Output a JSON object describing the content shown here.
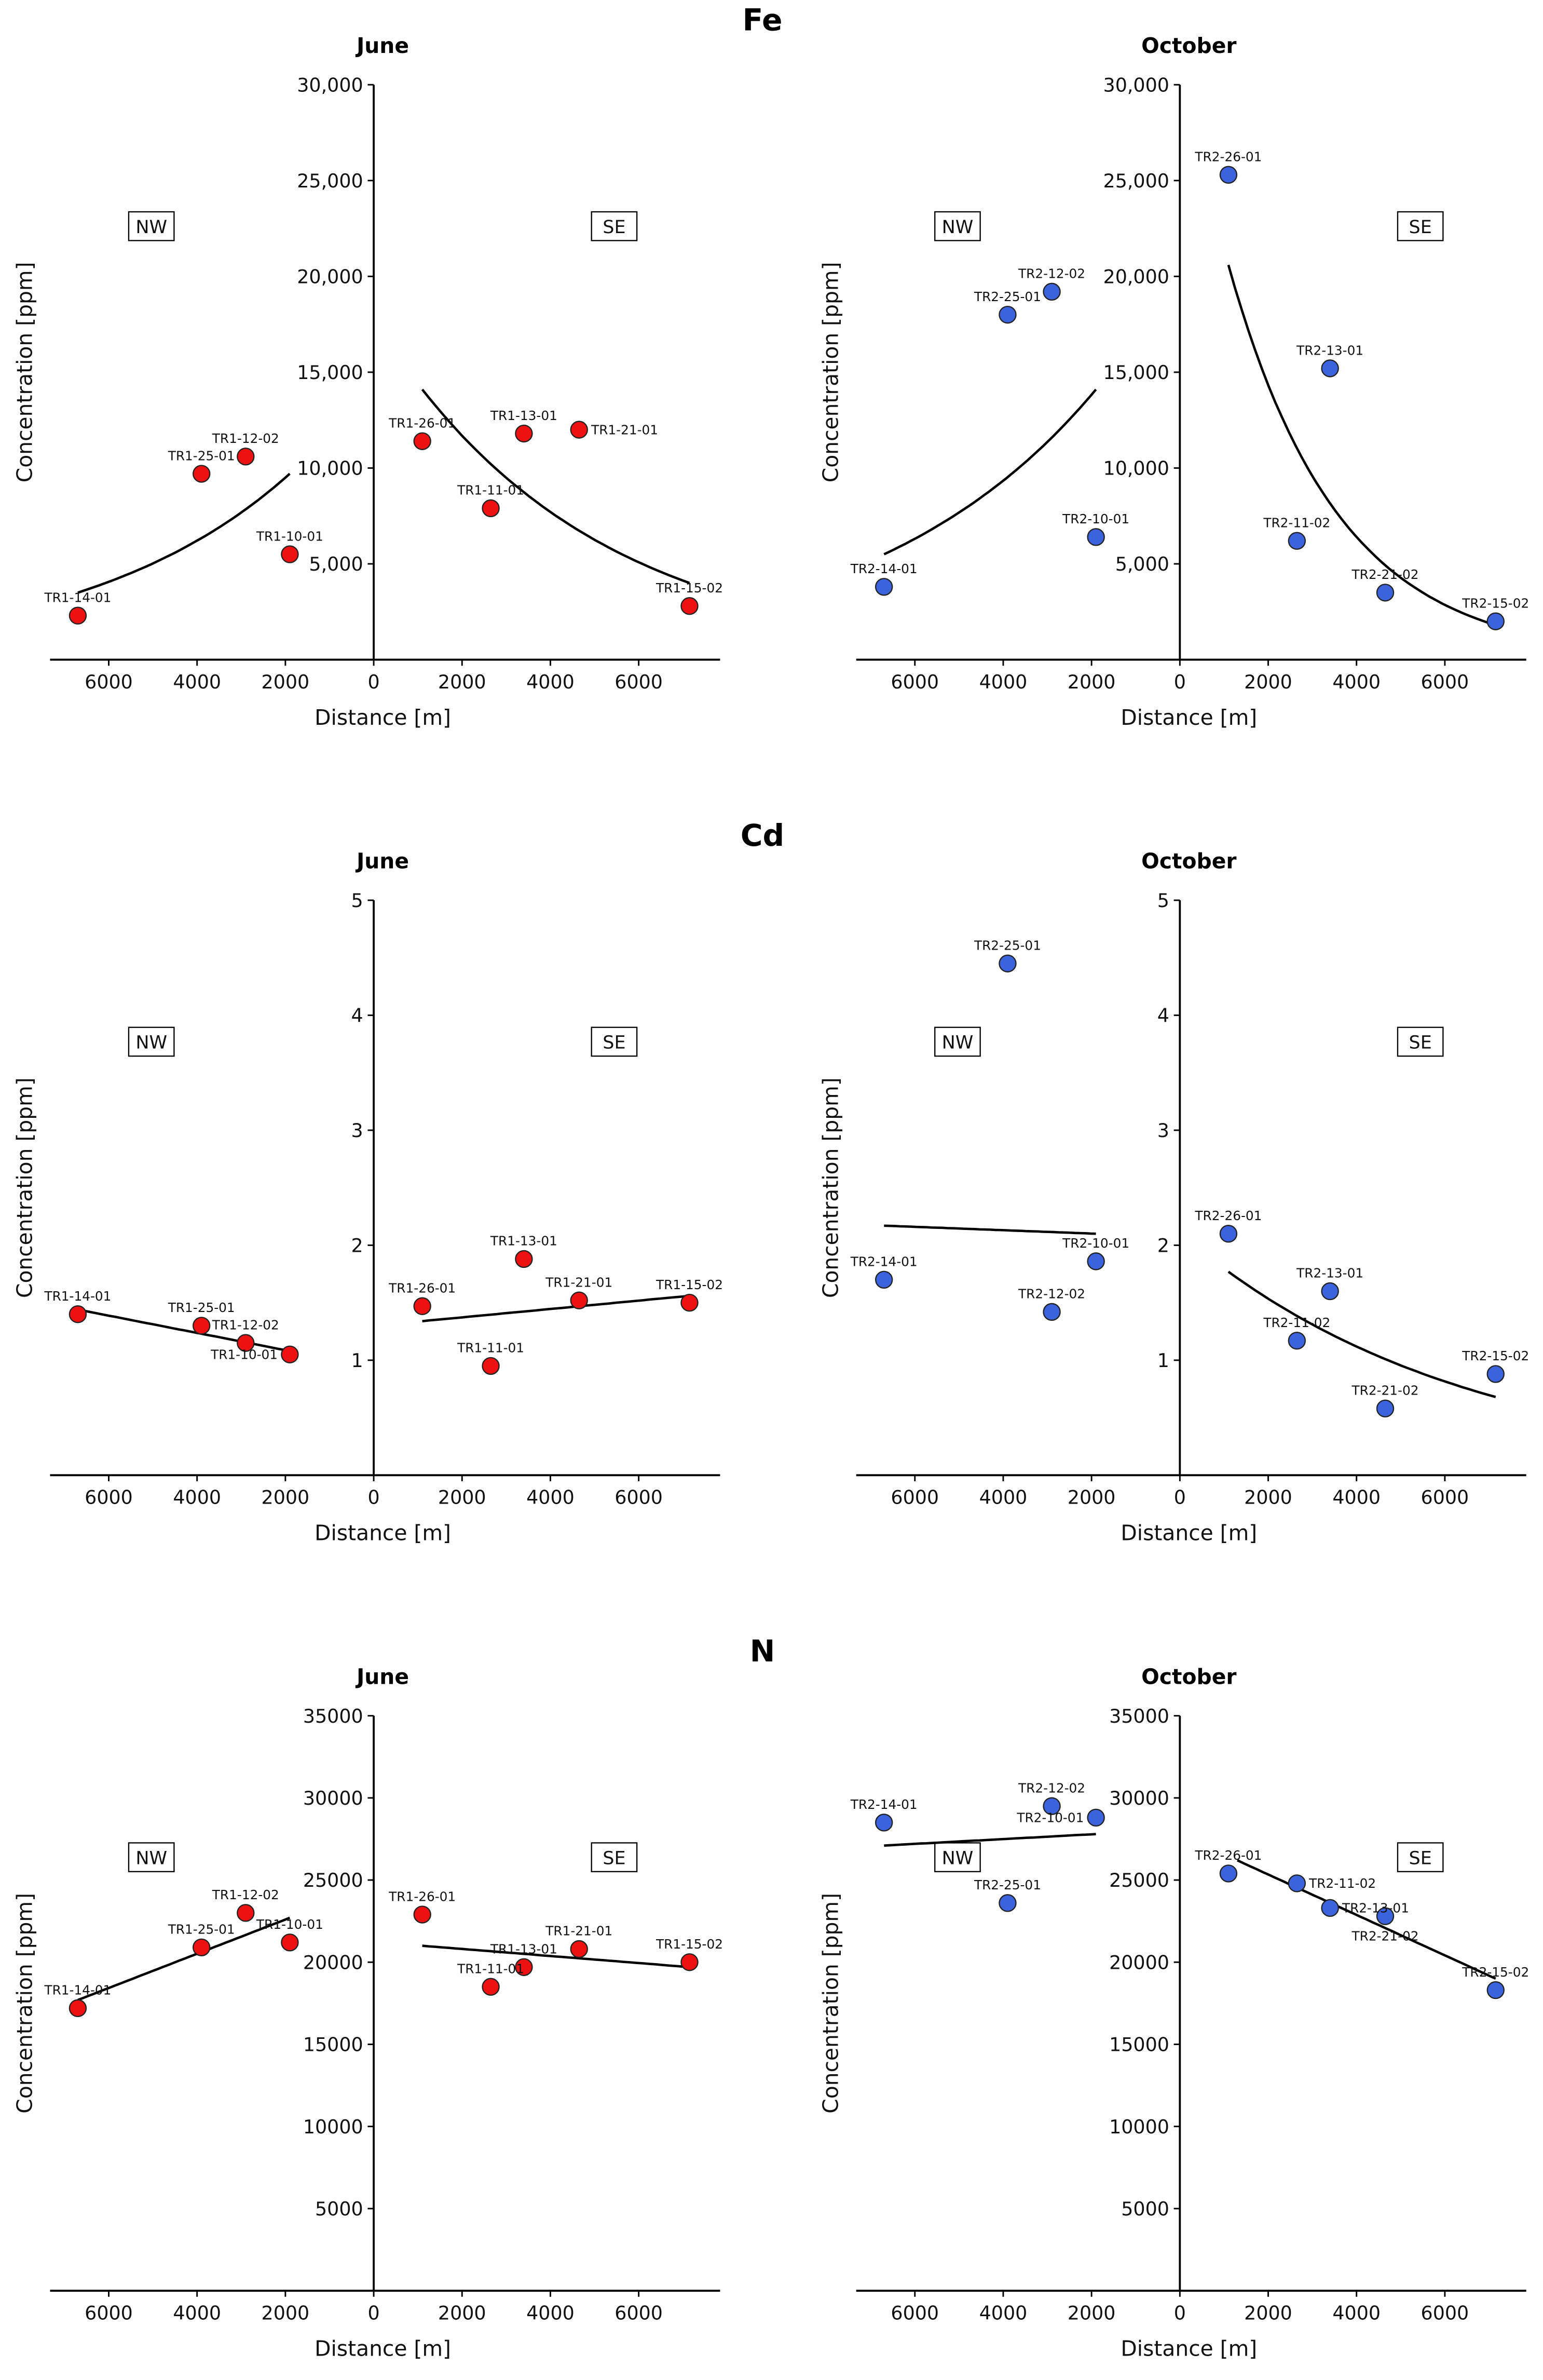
{
  "chart_data": [
    {
      "type": "scatter",
      "element": "Fe",
      "title": "June",
      "xlabel": "Distance [m]",
      "ylabel": "Concentration [ppm]",
      "ylim": [
        0,
        30000
      ],
      "yticks": [
        5000,
        10000,
        15000,
        20000,
        25000,
        30000
      ],
      "ytick_labels": [
        "5,000",
        "10,000",
        "15,000",
        "20,000",
        "25,000",
        "30,000"
      ],
      "xticks": [
        -6000,
        -4000,
        -2000,
        0,
        2000,
        4000,
        6000
      ],
      "xtick_labels": [
        "6000",
        "4000",
        "2000",
        "0",
        "2000",
        "4000",
        "6000"
      ],
      "regions": [
        "NW",
        "SE"
      ],
      "color": "#ee1111",
      "points": [
        {
          "label": "TR1-14-01",
          "x": -6700,
          "y": 2300
        },
        {
          "label": "TR1-25-01",
          "x": -3900,
          "y": 9700
        },
        {
          "label": "TR1-12-02",
          "x": -2900,
          "y": 10600
        },
        {
          "label": "TR1-10-01",
          "x": -1900,
          "y": 5500
        },
        {
          "label": "TR1-26-01",
          "x": 1100,
          "y": 11400
        },
        {
          "label": "TR1-11-01",
          "x": 2650,
          "y": 7900
        },
        {
          "label": "TR1-13-01",
          "x": 3400,
          "y": 11800
        },
        {
          "label": "TR1-21-01",
          "x": 4650,
          "y": 12000
        },
        {
          "label": "TR1-15-02",
          "x": 7150,
          "y": 2800
        }
      ],
      "trends": [
        {
          "fit": "exp",
          "x": [
            -6700,
            -1900
          ],
          "y": [
            3500,
            9700
          ]
        },
        {
          "fit": "exp",
          "x": [
            1100,
            7150
          ],
          "y": [
            14100,
            4000
          ]
        }
      ]
    },
    {
      "type": "scatter",
      "element": "",
      "title": "October",
      "xlabel": "Distance [m]",
      "ylabel": "Concentration [ppm]",
      "ylim": [
        0,
        30000
      ],
      "yticks": [
        5000,
        10000,
        15000,
        20000,
        25000,
        30000
      ],
      "ytick_labels": [
        "5,000",
        "10,000",
        "15,000",
        "20,000",
        "25,000",
        "30,000"
      ],
      "xticks": [
        -6000,
        -4000,
        -2000,
        0,
        2000,
        4000,
        6000
      ],
      "xtick_labels": [
        "6000",
        "4000",
        "2000",
        "0",
        "2000",
        "4000",
        "6000"
      ],
      "regions": [
        "NW",
        "SE"
      ],
      "color": "#3b63dd",
      "points": [
        {
          "label": "TR2-14-01",
          "x": -6700,
          "y": 3800
        },
        {
          "label": "TR2-25-01",
          "x": -3900,
          "y": 18000
        },
        {
          "label": "TR2-12-02",
          "x": -2900,
          "y": 19200
        },
        {
          "label": "TR2-10-01",
          "x": -1900,
          "y": 6400
        },
        {
          "label": "TR2-26-01",
          "x": 1100,
          "y": 25300
        },
        {
          "label": "TR2-11-02",
          "x": 2650,
          "y": 6200
        },
        {
          "label": "TR2-13-01",
          "x": 3400,
          "y": 15200
        },
        {
          "label": "TR2-21-02",
          "x": 4650,
          "y": 3500
        },
        {
          "label": "TR2-15-02",
          "x": 7150,
          "y": 2000
        }
      ],
      "trends": [
        {
          "fit": "exp",
          "x": [
            -6700,
            -1900
          ],
          "y": [
            5500,
            14100
          ]
        },
        {
          "fit": "exp",
          "x": [
            1100,
            7150
          ],
          "y": [
            20600,
            1800
          ]
        }
      ]
    },
    {
      "type": "scatter",
      "element": "Cd",
      "title": "June",
      "xlabel": "Distance [m]",
      "ylabel": "Concentration [ppm]",
      "ylim": [
        0,
        5
      ],
      "yticks": [
        1,
        2,
        3,
        4,
        5
      ],
      "ytick_labels": [
        "1",
        "2",
        "3",
        "4",
        "5"
      ],
      "xticks": [
        -6000,
        -4000,
        -2000,
        0,
        2000,
        4000,
        6000
      ],
      "xtick_labels": [
        "6000",
        "4000",
        "2000",
        "0",
        "2000",
        "4000",
        "6000"
      ],
      "regions": [
        "NW",
        "SE"
      ],
      "color": "#ee1111",
      "points": [
        {
          "label": "TR1-14-01",
          "x": -6700,
          "y": 1.4
        },
        {
          "label": "TR1-25-01",
          "x": -3900,
          "y": 1.3
        },
        {
          "label": "TR1-12-02",
          "x": -2900,
          "y": 1.15
        },
        {
          "label": "TR1-10-01",
          "x": -1900,
          "y": 1.05
        },
        {
          "label": "TR1-26-01",
          "x": 1100,
          "y": 1.47
        },
        {
          "label": "TR1-11-01",
          "x": 2650,
          "y": 0.95
        },
        {
          "label": "TR1-13-01",
          "x": 3400,
          "y": 1.88
        },
        {
          "label": "TR1-21-01",
          "x": 4650,
          "y": 1.52
        },
        {
          "label": "TR1-15-02",
          "x": 7150,
          "y": 1.5
        }
      ],
      "trends": [
        {
          "fit": "linear",
          "x": [
            -6700,
            -1900
          ],
          "y": [
            1.44,
            1.08
          ]
        },
        {
          "fit": "linear",
          "x": [
            1100,
            7150
          ],
          "y": [
            1.34,
            1.56
          ]
        }
      ]
    },
    {
      "type": "scatter",
      "element": "",
      "title": "October",
      "xlabel": "Distance [m]",
      "ylabel": "Concentration [ppm]",
      "ylim": [
        0,
        5
      ],
      "yticks": [
        1,
        2,
        3,
        4,
        5
      ],
      "ytick_labels": [
        "1",
        "2",
        "3",
        "4",
        "5"
      ],
      "xticks": [
        -6000,
        -4000,
        -2000,
        0,
        2000,
        4000,
        6000
      ],
      "xtick_labels": [
        "6000",
        "4000",
        "2000",
        "0",
        "2000",
        "4000",
        "6000"
      ],
      "regions": [
        "NW",
        "SE"
      ],
      "color": "#3b63dd",
      "points": [
        {
          "label": "TR2-14-01",
          "x": -6700,
          "y": 1.7
        },
        {
          "label": "TR2-25-01",
          "x": -3900,
          "y": 4.45
        },
        {
          "label": "TR2-12-02",
          "x": -2900,
          "y": 1.42
        },
        {
          "label": "TR2-10-01",
          "x": -1900,
          "y": 1.86
        },
        {
          "label": "TR2-26-01",
          "x": 1100,
          "y": 2.1
        },
        {
          "label": "TR2-11-02",
          "x": 2650,
          "y": 1.17
        },
        {
          "label": "TR2-13-01",
          "x": 3400,
          "y": 1.6
        },
        {
          "label": "TR2-21-02",
          "x": 4650,
          "y": 0.58
        },
        {
          "label": "TR2-15-02",
          "x": 7150,
          "y": 0.88
        }
      ],
      "trends": [
        {
          "fit": "linear",
          "x": [
            -6700,
            -1900
          ],
          "y": [
            2.17,
            2.1
          ]
        },
        {
          "fit": "exp",
          "x": [
            1100,
            7150
          ],
          "y": [
            1.77,
            0.68
          ]
        }
      ]
    },
    {
      "type": "scatter",
      "element": "N",
      "title": "June",
      "xlabel": "Distance [m]",
      "ylabel": "Concentration [ppm]",
      "ylim": [
        0,
        35000
      ],
      "yticks": [
        5000,
        10000,
        15000,
        20000,
        25000,
        30000,
        35000
      ],
      "ytick_labels": [
        "5000",
        "10000",
        "15000",
        "20000",
        "25000",
        "30000",
        "35000"
      ],
      "xticks": [
        -6000,
        -4000,
        -2000,
        0,
        2000,
        4000,
        6000
      ],
      "xtick_labels": [
        "6000",
        "4000",
        "2000",
        "0",
        "2000",
        "4000",
        "6000"
      ],
      "regions": [
        "NW",
        "SE"
      ],
      "color": "#ee1111",
      "points": [
        {
          "label": "TR1-14-01",
          "x": -6700,
          "y": 17200
        },
        {
          "label": "TR1-25-01",
          "x": -3900,
          "y": 20900
        },
        {
          "label": "TR1-12-02",
          "x": -2900,
          "y": 23000
        },
        {
          "label": "TR1-10-01",
          "x": -1900,
          "y": 21200
        },
        {
          "label": "TR1-26-01",
          "x": 1100,
          "y": 22900
        },
        {
          "label": "TR1-11-01",
          "x": 2650,
          "y": 18500
        },
        {
          "label": "TR1-13-01",
          "x": 3400,
          "y": 19700
        },
        {
          "label": "TR1-21-01",
          "x": 4650,
          "y": 20800
        },
        {
          "label": "TR1-15-02",
          "x": 7150,
          "y": 20000
        }
      ],
      "trends": [
        {
          "fit": "linear",
          "x": [
            -6700,
            -1900
          ],
          "y": [
            17700,
            22700
          ]
        },
        {
          "fit": "linear",
          "x": [
            1100,
            7150
          ],
          "y": [
            21000,
            19700
          ]
        }
      ]
    },
    {
      "type": "scatter",
      "element": "",
      "title": "October",
      "xlabel": "Distance [m]",
      "ylabel": "Concentration [ppm]",
      "ylim": [
        0,
        35000
      ],
      "yticks": [
        5000,
        10000,
        15000,
        20000,
        25000,
        30000,
        35000
      ],
      "ytick_labels": [
        "5000",
        "10000",
        "15000",
        "20000",
        "25000",
        "30000",
        "35000"
      ],
      "xticks": [
        -6000,
        -4000,
        -2000,
        0,
        2000,
        4000,
        6000
      ],
      "xtick_labels": [
        "6000",
        "4000",
        "2000",
        "0",
        "2000",
        "4000",
        "6000"
      ],
      "regions": [
        "NW",
        "SE"
      ],
      "color": "#3b63dd",
      "points": [
        {
          "label": "TR2-14-01",
          "x": -6700,
          "y": 28500
        },
        {
          "label": "TR2-25-01",
          "x": -3900,
          "y": 23600
        },
        {
          "label": "TR2-12-02",
          "x": -2900,
          "y": 29500
        },
        {
          "label": "TR2-10-01",
          "x": -1900,
          "y": 28800
        },
        {
          "label": "TR2-26-01",
          "x": 1100,
          "y": 25400
        },
        {
          "label": "TR2-11-02",
          "x": 2650,
          "y": 24800
        },
        {
          "label": "TR2-13-01",
          "x": 3400,
          "y": 23300
        },
        {
          "label": "TR2-21-02",
          "x": 4650,
          "y": 22800
        },
        {
          "label": "TR2-15-02",
          "x": 7150,
          "y": 18300
        }
      ],
      "trends": [
        {
          "fit": "linear",
          "x": [
            -6700,
            -1900
          ],
          "y": [
            27100,
            27800
          ]
        },
        {
          "fit": "linear",
          "x": [
            1300,
            7150
          ],
          "y": [
            26200,
            19000
          ]
        }
      ]
    }
  ]
}
